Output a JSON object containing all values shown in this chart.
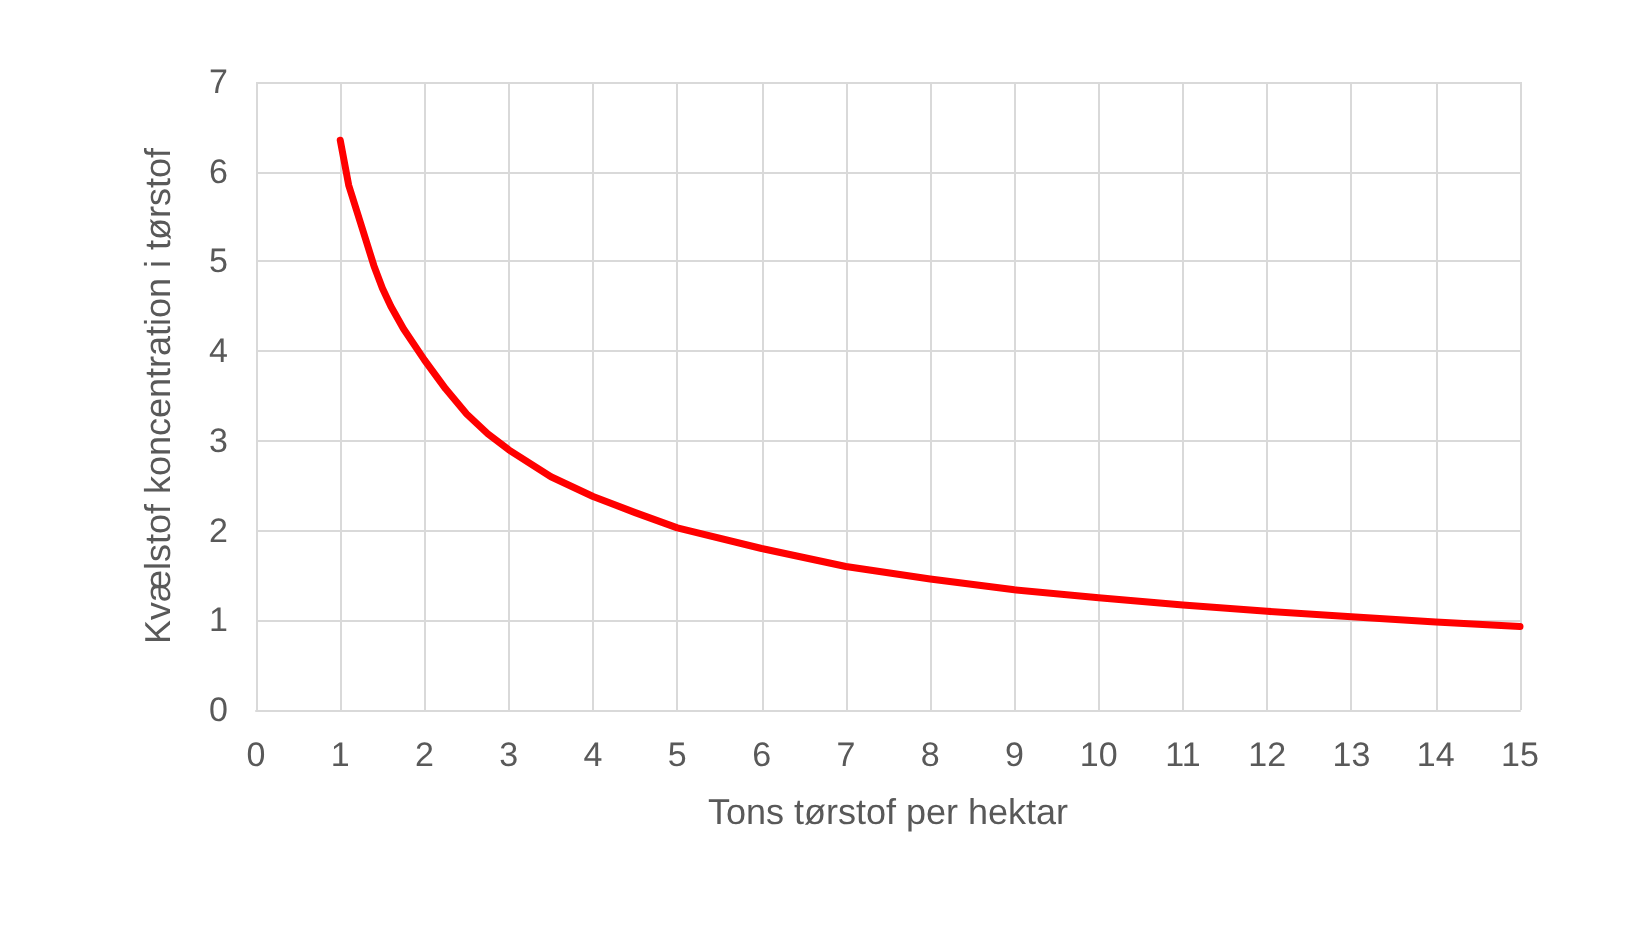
{
  "chart_data": {
    "type": "line",
    "xlabel": "Tons tørstof per hektar",
    "ylabel": "Kvælstof koncentration i tørstof",
    "x": [
      1,
      1.1,
      1.25,
      1.4,
      1.5,
      1.6,
      1.75,
      2,
      2.25,
      2.5,
      2.75,
      3,
      3.5,
      4,
      4.5,
      5,
      6,
      7,
      8,
      9,
      10,
      11,
      12,
      13,
      14,
      15
    ],
    "series": [
      {
        "color": "#ff0000",
        "values": [
          6.35,
          5.85,
          5.4,
          4.95,
          4.7,
          4.5,
          4.25,
          3.9,
          3.58,
          3.3,
          3.08,
          2.9,
          2.6,
          2.38,
          2.2,
          2.03,
          1.8,
          1.6,
          1.46,
          1.34,
          1.25,
          1.17,
          1.1,
          1.04,
          0.98,
          0.93
        ]
      }
    ],
    "xlim": [
      0,
      15
    ],
    "xticks": [
      0,
      1,
      2,
      3,
      4,
      5,
      6,
      7,
      8,
      9,
      10,
      11,
      12,
      13,
      14,
      15
    ],
    "ylim": [
      0,
      7
    ],
    "yticks": [
      0,
      1,
      2,
      3,
      4,
      5,
      6,
      7
    ],
    "grid": true,
    "marker": "none",
    "line_style": "solid"
  }
}
